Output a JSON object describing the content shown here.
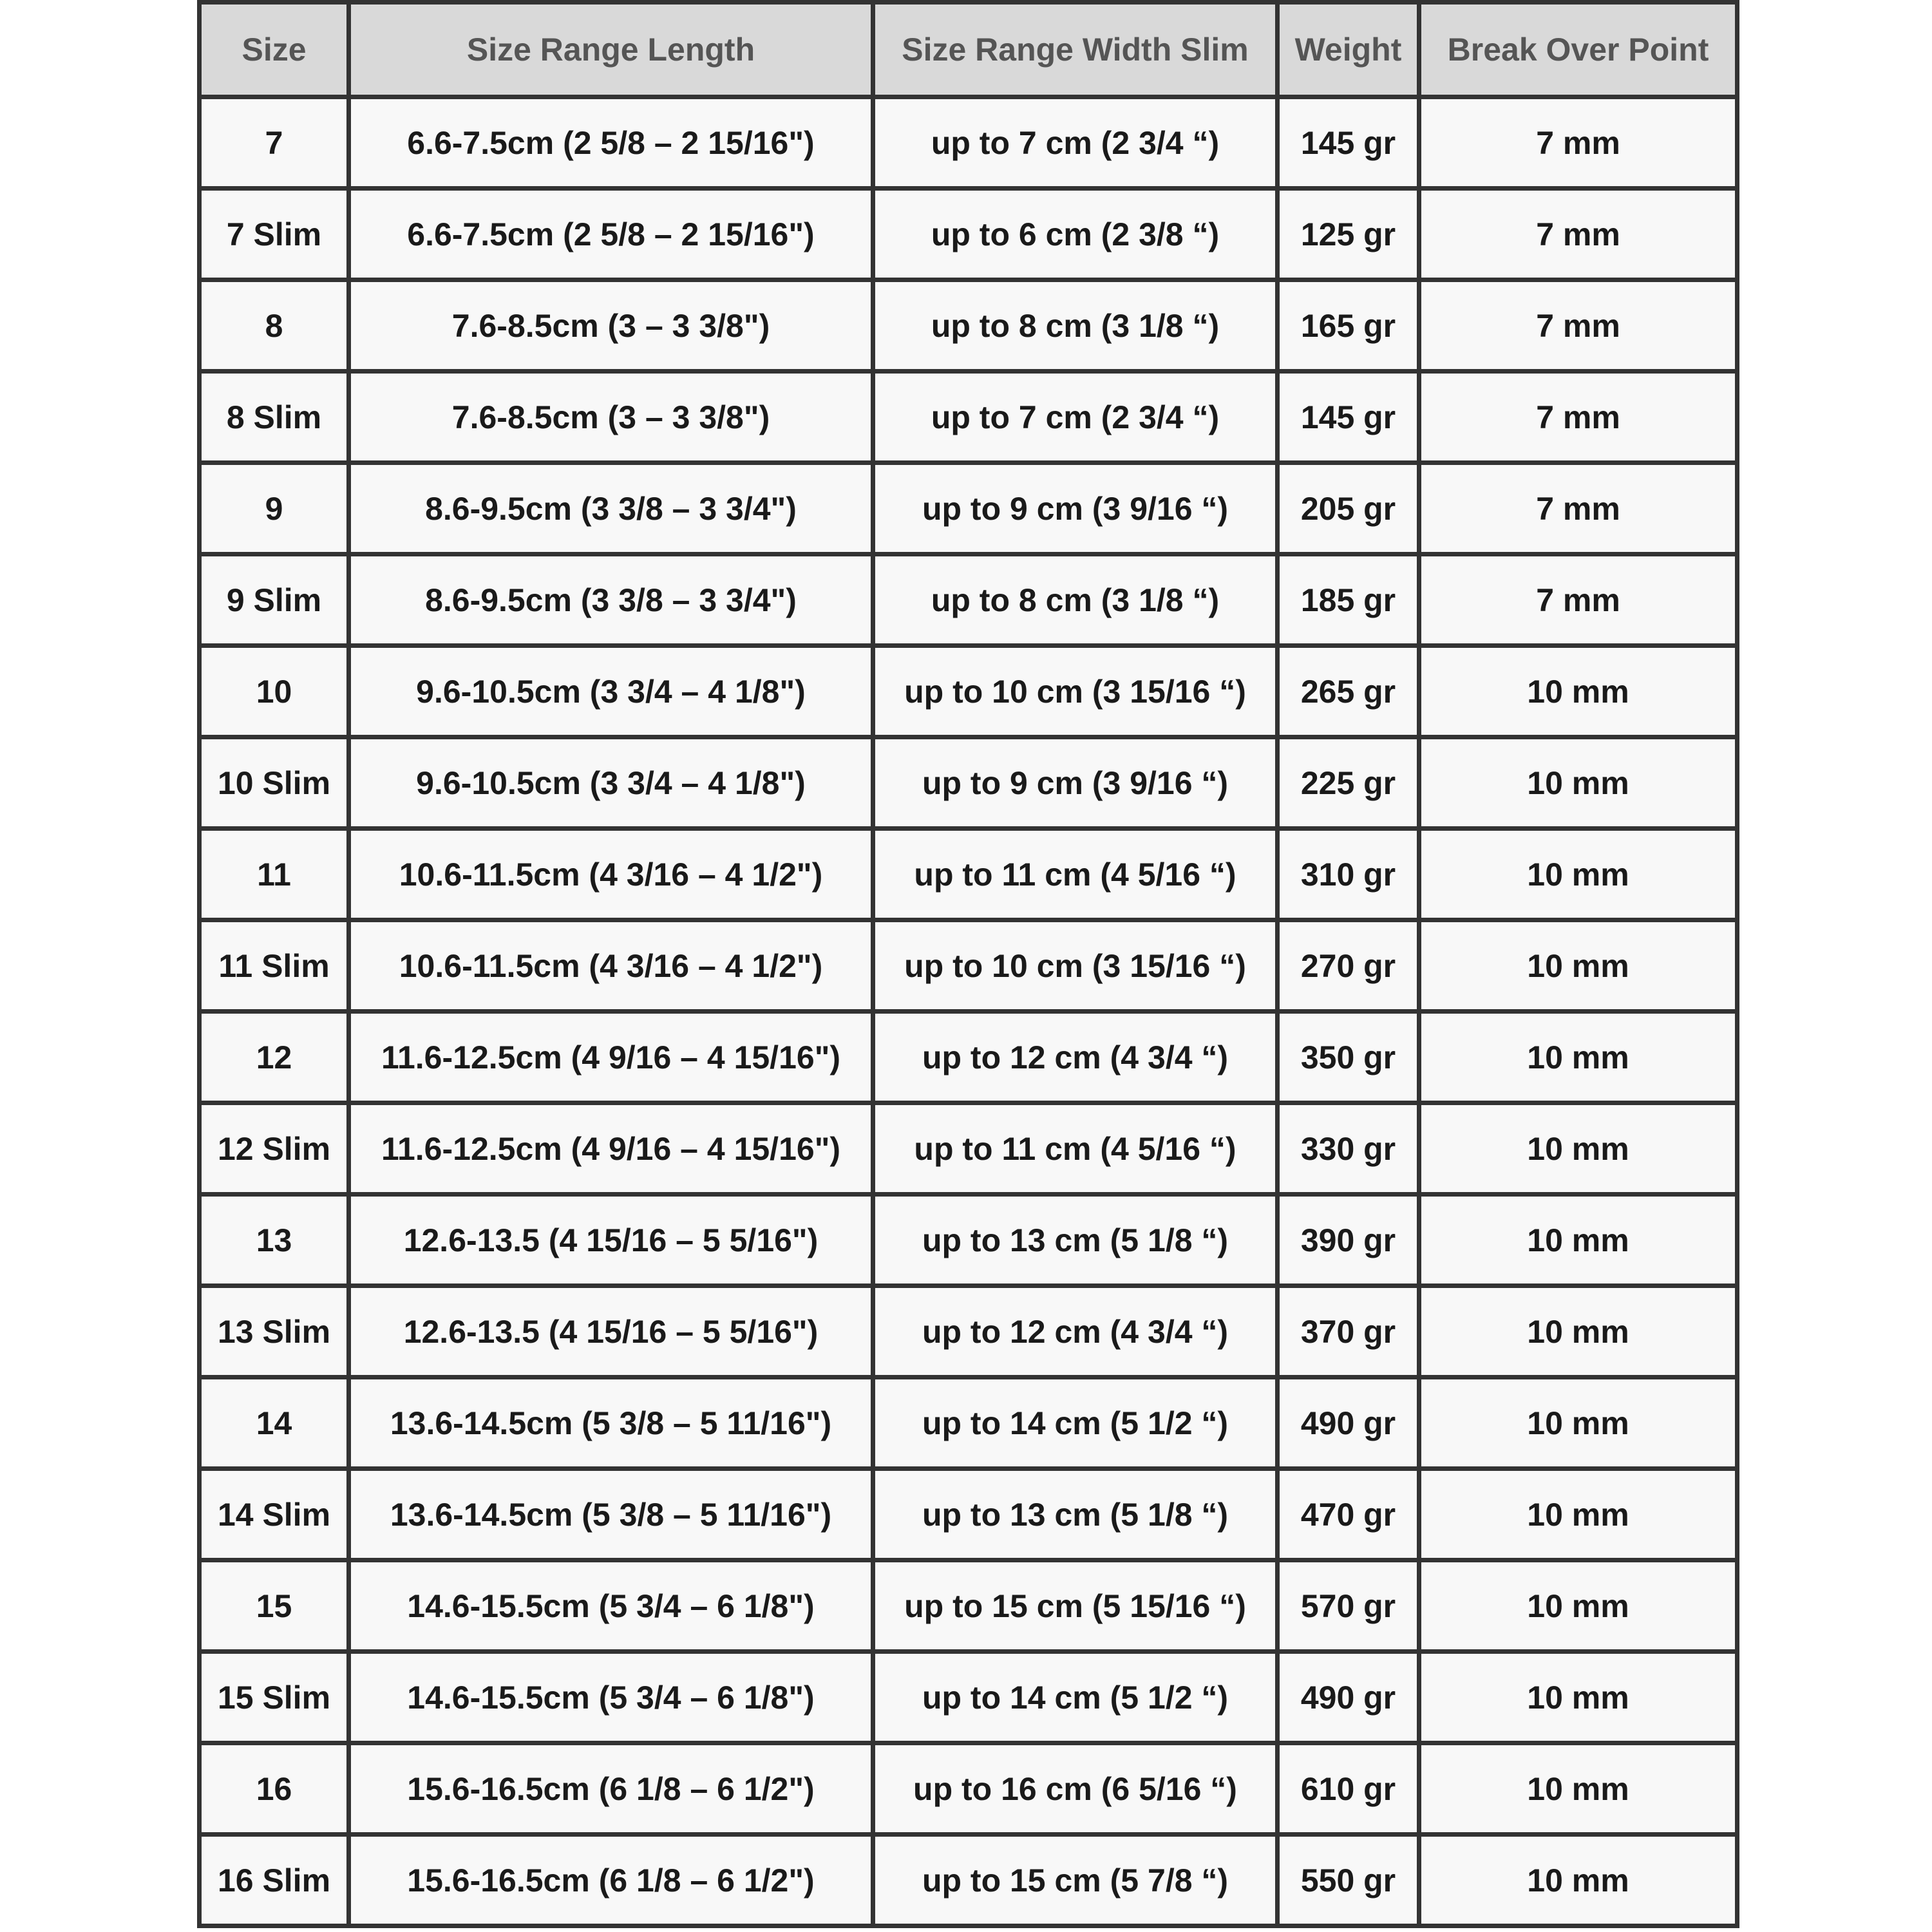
{
  "headers": [
    "Size",
    "Size Range Length",
    "Size Range Width Slim",
    "Weight",
    "Break Over Point"
  ],
  "rows": [
    [
      "7",
      "6.6-7.5cm (2 5/8 – 2 15/16\")",
      "up to 7 cm (2 3/4 “)",
      "145 gr",
      "7 mm"
    ],
    [
      "7 Slim",
      "6.6-7.5cm (2 5/8 – 2 15/16\")",
      "up to 6 cm (2 3/8 “)",
      "125 gr",
      "7 mm"
    ],
    [
      "8",
      "7.6-8.5cm (3 – 3 3/8\")",
      "up to 8 cm (3 1/8 “)",
      "165 gr",
      "7 mm"
    ],
    [
      "8 Slim",
      "7.6-8.5cm (3 – 3 3/8\")",
      "up to 7 cm (2 3/4 “)",
      "145 gr",
      "7 mm"
    ],
    [
      "9",
      "8.6-9.5cm (3 3/8 – 3 3/4\")",
      "up to 9 cm (3 9/16 “)",
      "205 gr",
      "7 mm"
    ],
    [
      "9 Slim",
      "8.6-9.5cm (3 3/8 – 3 3/4\")",
      "up to 8 cm (3 1/8 “)",
      "185 gr",
      "7 mm"
    ],
    [
      "10",
      "9.6-10.5cm (3 3/4 – 4 1/8\")",
      "up to 10 cm (3 15/16 “)",
      "265 gr",
      "10 mm"
    ],
    [
      "10 Slim",
      "9.6-10.5cm (3 3/4 – 4 1/8\")",
      "up to 9 cm (3 9/16 “)",
      "225 gr",
      "10 mm"
    ],
    [
      "11",
      "10.6-11.5cm (4 3/16 – 4 1/2\")",
      "up to 11 cm (4 5/16 “)",
      "310 gr",
      "10 mm"
    ],
    [
      "11 Slim",
      "10.6-11.5cm (4 3/16 – 4 1/2\")",
      "up to 10 cm (3 15/16 “)",
      "270 gr",
      "10 mm"
    ],
    [
      "12",
      "11.6-12.5cm (4 9/16 – 4 15/16\")",
      "up to 12 cm (4 3/4 “)",
      "350 gr",
      "10 mm"
    ],
    [
      "12 Slim",
      "11.6-12.5cm (4 9/16 – 4 15/16\")",
      "up to 11 cm (4 5/16 “)",
      "330 gr",
      "10 mm"
    ],
    [
      "13",
      "12.6-13.5 (4 15/16 – 5 5/16\")",
      "up to 13 cm (5 1/8 “)",
      "390 gr",
      "10 mm"
    ],
    [
      "13 Slim",
      "12.6-13.5 (4 15/16 – 5 5/16\")",
      "up to 12 cm (4 3/4 “)",
      "370 gr",
      "10 mm"
    ],
    [
      "14",
      "13.6-14.5cm (5 3/8 – 5 11/16\")",
      "up to 14 cm (5 1/2 “)",
      "490 gr",
      "10 mm"
    ],
    [
      "14 Slim",
      "13.6-14.5cm (5 3/8 – 5 11/16\")",
      "up to 13 cm (5 1/8 “)",
      "470 gr",
      "10 mm"
    ],
    [
      "15",
      "14.6-15.5cm (5 3/4 – 6 1/8\")",
      "up to 15 cm (5 15/16 “)",
      "570 gr",
      "10 mm"
    ],
    [
      "15 Slim",
      "14.6-15.5cm (5 3/4 – 6 1/8\")",
      "up to 14 cm (5 1/2 “)",
      "490 gr",
      "10 mm"
    ],
    [
      "16",
      "15.6-16.5cm (6 1/8 – 6 1/2\")",
      "up to 16 cm (6 5/16 “)",
      "610 gr",
      "10 mm"
    ],
    [
      "16 Slim",
      "15.6-16.5cm (6 1/8 – 6 1/2\")",
      "up to 15 cm (5 7/8 “)",
      "550 gr",
      "10 mm"
    ]
  ]
}
